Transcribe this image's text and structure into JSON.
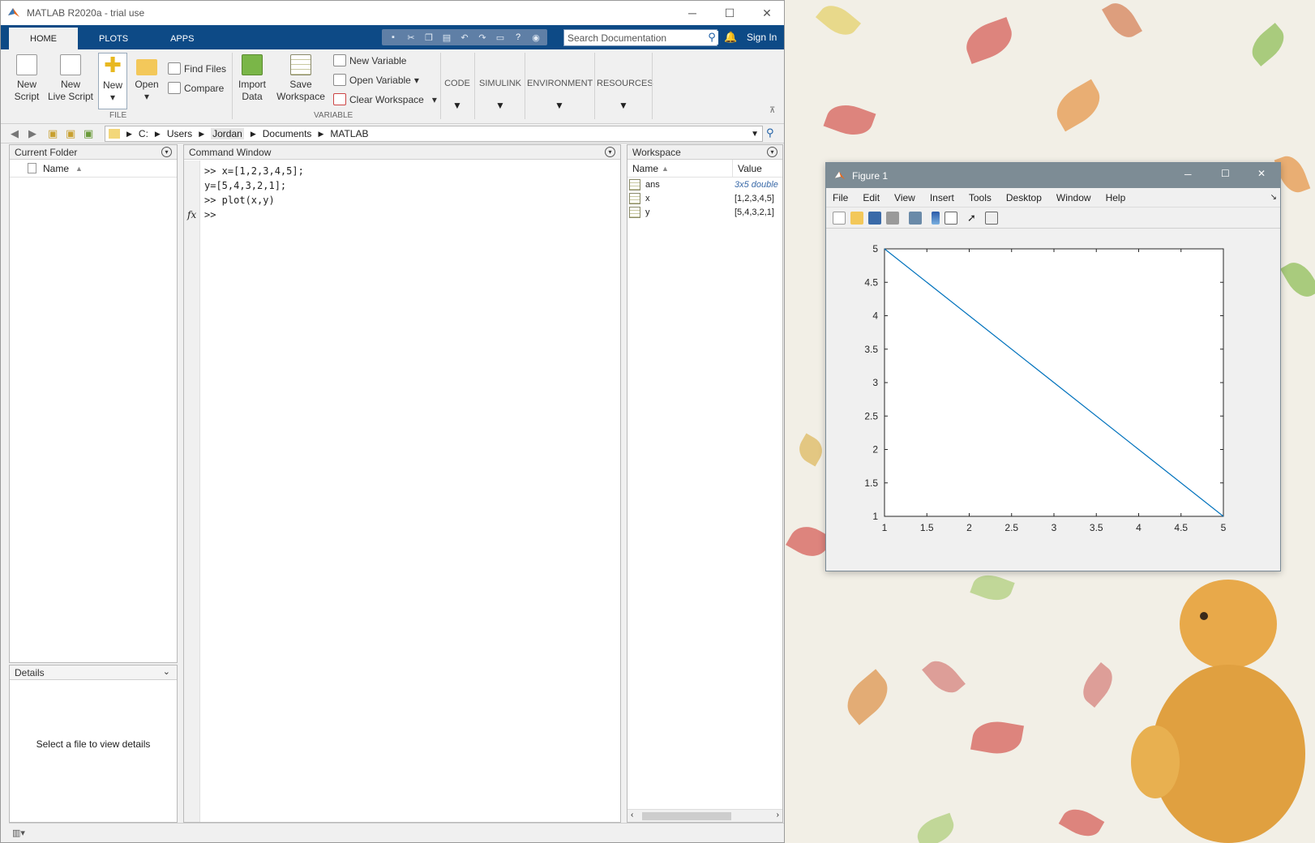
{
  "matlab": {
    "title": "MATLAB R2020a - trial use",
    "tabs": [
      "HOME",
      "PLOTS",
      "APPS"
    ],
    "search_placeholder": "Search Documentation",
    "sign_in": "Sign In",
    "ribbon": {
      "new_script": [
        "New",
        "Script"
      ],
      "new_live_script": [
        "New",
        "Live Script"
      ],
      "new": "New",
      "open": "Open",
      "find_files": "Find Files",
      "compare": "Compare",
      "import_data": [
        "Import",
        "Data"
      ],
      "save_workspace": [
        "Save",
        "Workspace"
      ],
      "new_variable": "New Variable",
      "open_variable": "Open Variable",
      "clear_workspace": "Clear Workspace",
      "group_file": "FILE",
      "group_variable": "VARIABLE",
      "code": "CODE",
      "simulink": "SIMULINK",
      "environment": "ENVIRONMENT",
      "resources": "RESOURCES"
    },
    "path": [
      "C:",
      "Users",
      "Jordan",
      "Documents",
      "MATLAB"
    ],
    "current_folder": {
      "title": "Current Folder",
      "col_name": "Name"
    },
    "details": {
      "title": "Details",
      "message": "Select a file to view details"
    },
    "command_window": {
      "title": "Command Window",
      "lines": [
        ">> x=[1,2,3,4,5];",
        "y=[5,4,3,2,1];",
        ">> plot(x,y)",
        ">>"
      ],
      "fx": "fx"
    },
    "workspace": {
      "title": "Workspace",
      "col_name": "Name",
      "col_value": "Value",
      "rows": [
        {
          "name": "ans",
          "value": "3x5 double"
        },
        {
          "name": "x",
          "value": "[1,2,3,4,5]"
        },
        {
          "name": "y",
          "value": "[5,4,3,2,1]"
        }
      ]
    }
  },
  "figure": {
    "title": "Figure 1",
    "menu": [
      "File",
      "Edit",
      "View",
      "Insert",
      "Tools",
      "Desktop",
      "Window",
      "Help"
    ]
  },
  "chart_data": {
    "type": "line",
    "x": [
      1,
      2,
      3,
      4,
      5
    ],
    "series": [
      {
        "values": [
          5,
          4,
          3,
          2,
          1
        ]
      }
    ],
    "xlim": [
      1,
      5
    ],
    "ylim": [
      1,
      5
    ],
    "xticks": [
      "1",
      "1.5",
      "2",
      "2.5",
      "3",
      "3.5",
      "4",
      "4.5",
      "5"
    ],
    "yticks": [
      "1",
      "1.5",
      "2",
      "2.5",
      "3",
      "3.5",
      "4",
      "4.5",
      "5"
    ],
    "line_color": "#0072bd",
    "grid": false
  }
}
